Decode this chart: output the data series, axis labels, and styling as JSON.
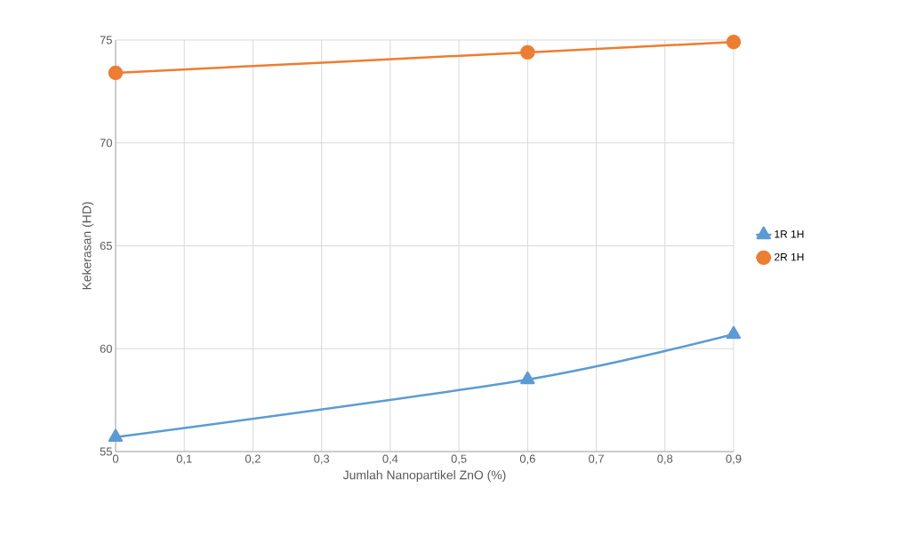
{
  "chart_data": {
    "type": "line",
    "xlabel": "Jumlah Nanopartikel ZnO (%)",
    "ylabel": "Kekerasan (HD)",
    "x": [
      0,
      0.6,
      0.9
    ],
    "series": [
      {
        "name": "1R 1H",
        "color": "#5b9bd5",
        "marker": "triangle",
        "values": [
          55.7,
          58.5,
          60.7
        ]
      },
      {
        "name": "2R 1H",
        "color": "#ed7d31",
        "marker": "circle",
        "values": [
          73.4,
          74.4,
          74.9
        ]
      }
    ],
    "xlim": [
      0,
      0.9
    ],
    "ylim": [
      55,
      75
    ],
    "xticks": [
      0,
      {
        "value": 0.1,
        "label": "0,1"
      },
      {
        "value": 0.2,
        "label": "0,2"
      },
      {
        "value": 0.3,
        "label": "0,3"
      },
      {
        "value": 0.4,
        "label": "0,4"
      },
      {
        "value": 0.5,
        "label": "0,5"
      },
      {
        "value": 0.6,
        "label": "0,6"
      },
      {
        "value": 0.7,
        "label": "0,7"
      },
      {
        "value": 0.8,
        "label": "0,8"
      },
      {
        "value": 0.9,
        "label": "0,9"
      }
    ],
    "yticks": [
      55,
      60,
      65,
      70,
      75
    ],
    "grid": true,
    "legend": "right",
    "line_style": "solid"
  }
}
